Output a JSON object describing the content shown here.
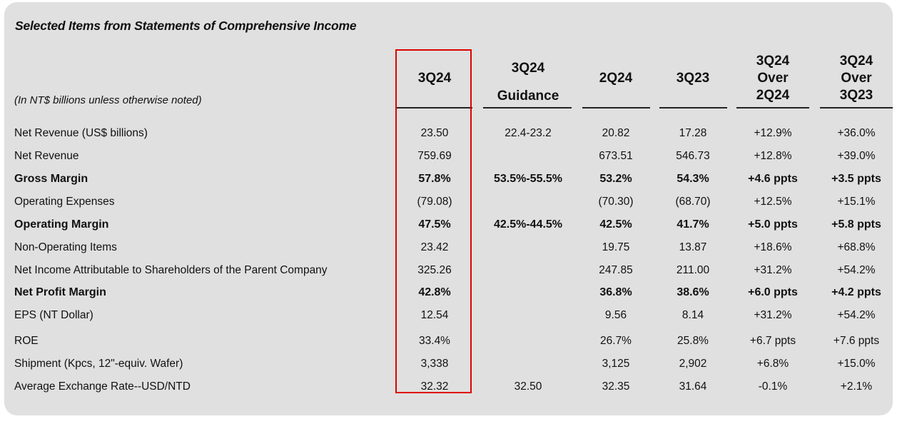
{
  "title": "Selected Items from Statements of Comprehensive Income",
  "note": "(In NT$ billions unless otherwise noted)",
  "columns": [
    {
      "lines": [
        "3Q24"
      ]
    },
    {
      "lines": [
        "3Q24",
        "Guidance"
      ]
    },
    {
      "lines": [
        "2Q24"
      ]
    },
    {
      "lines": [
        "3Q23"
      ]
    },
    {
      "lines": [
        "3Q24",
        "Over",
        "2Q24"
      ]
    },
    {
      "lines": [
        "3Q24",
        "Over",
        "3Q23"
      ]
    }
  ],
  "rows": [
    {
      "label": "Net Revenue (US$ billions)",
      "bold": false,
      "values": [
        "23.50",
        "22.4-23.2",
        "20.82",
        "17.28",
        "+12.9%",
        "+36.0%"
      ]
    },
    {
      "label": "Net Revenue",
      "bold": false,
      "values": [
        "759.69",
        "",
        "673.51",
        "546.73",
        "+12.8%",
        "+39.0%"
      ]
    },
    {
      "label": "Gross Margin",
      "bold": true,
      "values": [
        "57.8%",
        "53.5%-55.5%",
        "53.2%",
        "54.3%",
        "+4.6 ppts",
        "+3.5 ppts"
      ]
    },
    {
      "label": "Operating Expenses",
      "bold": false,
      "values": [
        "(79.08)",
        "",
        "(70.30)",
        "(68.70)",
        "+12.5%",
        "+15.1%"
      ]
    },
    {
      "label": "Operating Margin",
      "bold": true,
      "values": [
        "47.5%",
        "42.5%-44.5%",
        "42.5%",
        "41.7%",
        "+5.0 ppts",
        "+5.8 ppts"
      ]
    },
    {
      "label": "Non-Operating Items",
      "bold": false,
      "values": [
        "23.42",
        "",
        "19.75",
        "13.87",
        "+18.6%",
        "+68.8%"
      ]
    },
    {
      "label": "Net Income Attributable to Shareholders of the Parent Company",
      "bold": false,
      "values": [
        "325.26",
        "",
        "247.85",
        "211.00",
        "+31.2%",
        "+54.2%"
      ]
    },
    {
      "label": "Net Profit Margin",
      "bold": true,
      "values": [
        "42.8%",
        "",
        "36.8%",
        "38.6%",
        "+6.0 ppts",
        "+4.2 ppts"
      ]
    },
    {
      "label": "EPS (NT Dollar)",
      "bold": false,
      "values": [
        "12.54",
        "",
        "9.56",
        "8.14",
        "+31.2%",
        "+54.2%"
      ]
    },
    {
      "label": "ROE",
      "bold": false,
      "values": [
        "33.4%",
        "",
        "26.7%",
        "25.8%",
        "+6.7 ppts",
        "+7.6 ppts"
      ]
    },
    {
      "label": "Shipment (Kpcs, 12\"-equiv. Wafer)",
      "bold": false,
      "values": [
        "3,338",
        "",
        "3,125",
        "2,902",
        "+6.8%",
        "+15.0%"
      ]
    },
    {
      "label": "Average Exchange Rate--USD/NTD",
      "bold": false,
      "values": [
        "32.32",
        "32.50",
        "32.35",
        "31.64",
        "-0.1%",
        "+2.1%"
      ]
    }
  ],
  "highlight_color": "#e00000"
}
